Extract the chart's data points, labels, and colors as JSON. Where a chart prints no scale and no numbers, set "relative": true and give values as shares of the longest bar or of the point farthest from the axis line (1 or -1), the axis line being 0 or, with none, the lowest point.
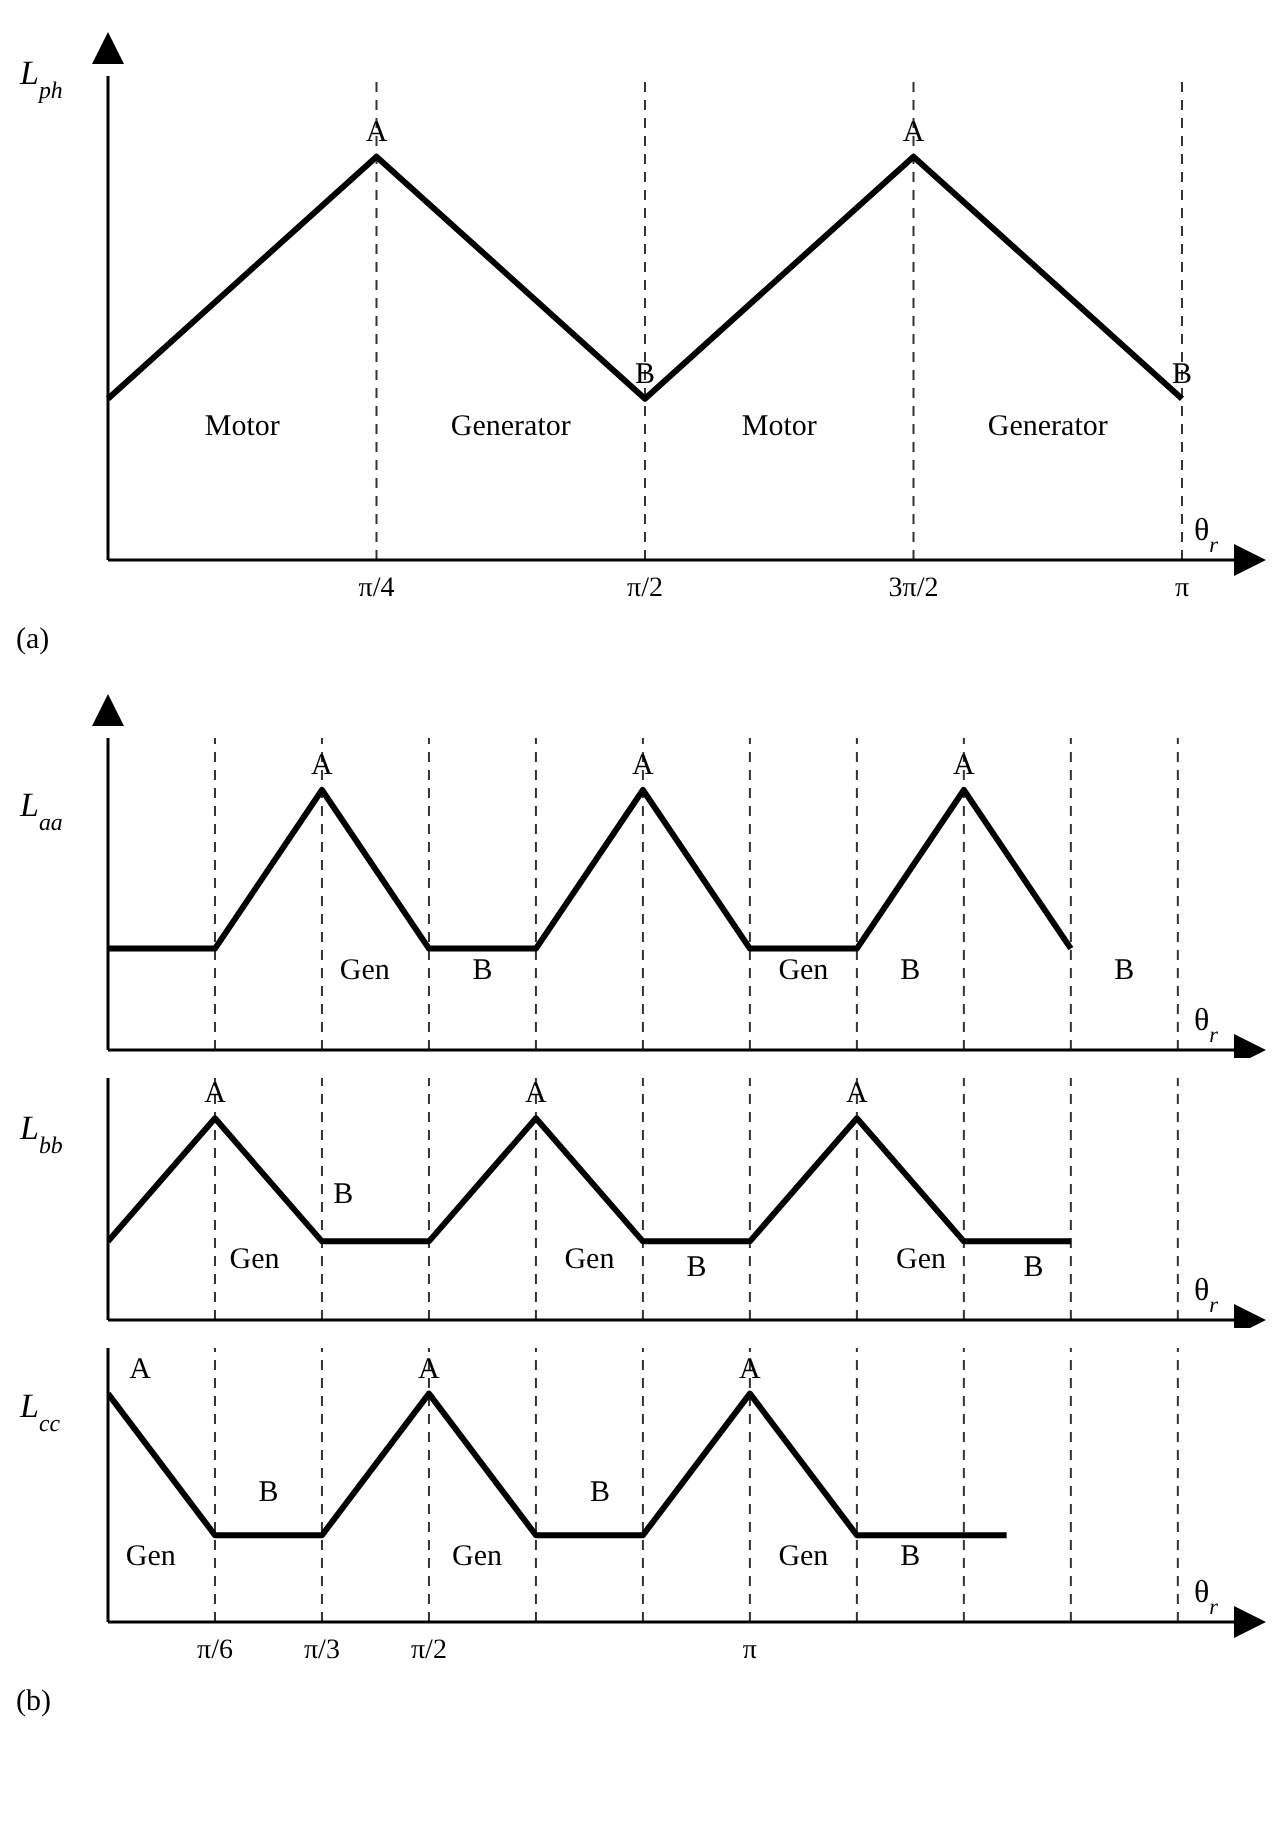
{
  "chart_data": [
    {
      "type": "line",
      "relative": true,
      "title": "(a)",
      "ylabel": "L$_{ph}$",
      "xlabel": "θ$_{r}$",
      "color": "#000000",
      "categories": [
        null,
        "π/4",
        "π/2",
        "3π/2",
        "π"
      ],
      "values": [
        0.4,
        1,
        0.4,
        1,
        0.4
      ],
      "ref_lines": [
        {
          "axis": "x",
          "value": "π/4",
          "line_style": "dashed"
        },
        {
          "axis": "x",
          "value": "π/2",
          "line_style": "dashed"
        },
        {
          "axis": "x",
          "value": "3π/2",
          "line_style": "dashed"
        },
        {
          "axis": "x",
          "value": "π",
          "line_style": "dashed"
        }
      ],
      "annotations": [
        {
          "text": "A",
          "x": "π/4",
          "y": 1
        },
        {
          "text": "B",
          "x": "π/2",
          "y": 0.4
        },
        {
          "text": "A",
          "x": "3π/2",
          "y": 1
        },
        {
          "text": "B",
          "x": "π",
          "y": 0.4
        },
        "Motor",
        "Generator",
        "Motor",
        "Generator"
      ]
    },
    {
      "type": "line",
      "relative": true,
      "ylabel": "L$_{aa}$",
      "xlabel": "θ$_{r}$",
      "color": "#000000",
      "x": [
        0,
        0.5236,
        1.0472,
        1.5708,
        2.0944,
        2.618,
        3.1416,
        3.6652,
        4.1888,
        4.7124
      ],
      "values": [
        0.39,
        0.39,
        1,
        0.39,
        0.39,
        1,
        0.39,
        0.39,
        1,
        0.39
      ],
      "xlim": [
        0,
        5.55
      ],
      "tick_labels": false,
      "ref_lines": [
        {
          "axis": "x",
          "value": 0.5236,
          "line_style": "dashed"
        },
        {
          "axis": "x",
          "value": 1.0472,
          "line_style": "dashed"
        },
        {
          "axis": "x",
          "value": 1.5708,
          "line_style": "dashed"
        },
        {
          "axis": "x",
          "value": 2.0944,
          "line_style": "dashed"
        },
        {
          "axis": "x",
          "value": 2.618,
          "line_style": "dashed"
        },
        {
          "axis": "x",
          "value": 3.1416,
          "line_style": "dashed"
        },
        {
          "axis": "x",
          "value": 3.6652,
          "line_style": "dashed"
        },
        {
          "axis": "x",
          "value": 4.1888,
          "line_style": "dashed"
        },
        {
          "axis": "x",
          "value": 4.7124,
          "line_style": "dashed"
        },
        {
          "axis": "x",
          "value": 5.236,
          "line_style": "dashed"
        }
      ],
      "annotations": [
        {
          "text": "A",
          "x": 1.0472,
          "y": 1
        },
        {
          "text": "A",
          "x": 2.618,
          "y": 1
        },
        {
          "text": "A",
          "x": 4.1888,
          "y": 1
        },
        "Gen",
        "B",
        "Gen",
        "B",
        "B"
      ]
    },
    {
      "type": "line",
      "relative": true,
      "ylabel": "L$_{bb}$",
      "xlabel": "θ$_{r}$",
      "color": "#000000",
      "x": [
        0,
        0.5236,
        1.0472,
        1.5708,
        2.0944,
        2.618,
        3.1416,
        3.6652,
        4.1888,
        4.7124
      ],
      "values": [
        0.39,
        1,
        0.39,
        0.39,
        1,
        0.39,
        0.39,
        1,
        0.39,
        0.39
      ],
      "xlim": [
        0,
        5.55
      ],
      "tick_labels": false,
      "ref_lines": [
        {
          "axis": "x",
          "value": 0.5236,
          "line_style": "dashed"
        },
        {
          "axis": "x",
          "value": 1.0472,
          "line_style": "dashed"
        },
        {
          "axis": "x",
          "value": 1.5708,
          "line_style": "dashed"
        },
        {
          "axis": "x",
          "value": 2.0944,
          "line_style": "dashed"
        },
        {
          "axis": "x",
          "value": 2.618,
          "line_style": "dashed"
        },
        {
          "axis": "x",
          "value": 3.1416,
          "line_style": "dashed"
        },
        {
          "axis": "x",
          "value": 3.6652,
          "line_style": "dashed"
        },
        {
          "axis": "x",
          "value": 4.1888,
          "line_style": "dashed"
        },
        {
          "axis": "x",
          "value": 4.7124,
          "line_style": "dashed"
        },
        {
          "axis": "x",
          "value": 5.236,
          "line_style": "dashed"
        }
      ],
      "annotations": [
        {
          "text": "A",
          "x": 0.5236,
          "y": 1
        },
        {
          "text": "A",
          "x": 2.0944,
          "y": 1
        },
        {
          "text": "A",
          "x": 3.6652,
          "y": 1
        },
        "Gen",
        "B",
        "Gen",
        "B",
        "Gen",
        "B"
      ]
    },
    {
      "type": "line",
      "relative": true,
      "title": "(b)",
      "ylabel": "L$_{cc}$",
      "xlabel": "θ$_{r}$",
      "color": "#000000",
      "x": [
        0,
        0.5236,
        1.0472,
        1.5708,
        2.0944,
        2.618,
        3.1416,
        3.6652,
        4.398
      ],
      "values": [
        1,
        0.38,
        0.38,
        1,
        0.38,
        0.38,
        1,
        0.38,
        0.38
      ],
      "xlim": [
        0,
        5.55
      ],
      "xticks": [
        {
          "value": 0.5236,
          "label": "π/6"
        },
        {
          "value": 1.0472,
          "label": "π/3"
        },
        {
          "value": 1.5708,
          "label": "π/2"
        },
        {
          "value": 3.1416,
          "label": "π"
        }
      ],
      "ref_lines": [
        {
          "axis": "x",
          "value": 0.5236,
          "line_style": "dashed"
        },
        {
          "axis": "x",
          "value": 1.0472,
          "line_style": "dashed"
        },
        {
          "axis": "x",
          "value": 1.5708,
          "line_style": "dashed"
        },
        {
          "axis": "x",
          "value": 2.0944,
          "line_style": "dashed"
        },
        {
          "axis": "x",
          "value": 2.618,
          "line_style": "dashed"
        },
        {
          "axis": "x",
          "value": 3.1416,
          "line_style": "dashed"
        },
        {
          "axis": "x",
          "value": 3.6652,
          "line_style": "dashed"
        },
        {
          "axis": "x",
          "value": 4.1888,
          "line_style": "dashed"
        },
        {
          "axis": "x",
          "value": 4.7124,
          "line_style": "dashed"
        },
        {
          "axis": "x",
          "value": 5.236,
          "line_style": "dashed"
        }
      ],
      "annotations": [
        {
          "text": "A",
          "x": 1.5708,
          "y": 1
        },
        {
          "text": "A",
          "x": 3.1416,
          "y": 1
        },
        "A",
        "B",
        "Gen",
        "Gen",
        "B",
        "Gen",
        "B"
      ]
    }
  ]
}
